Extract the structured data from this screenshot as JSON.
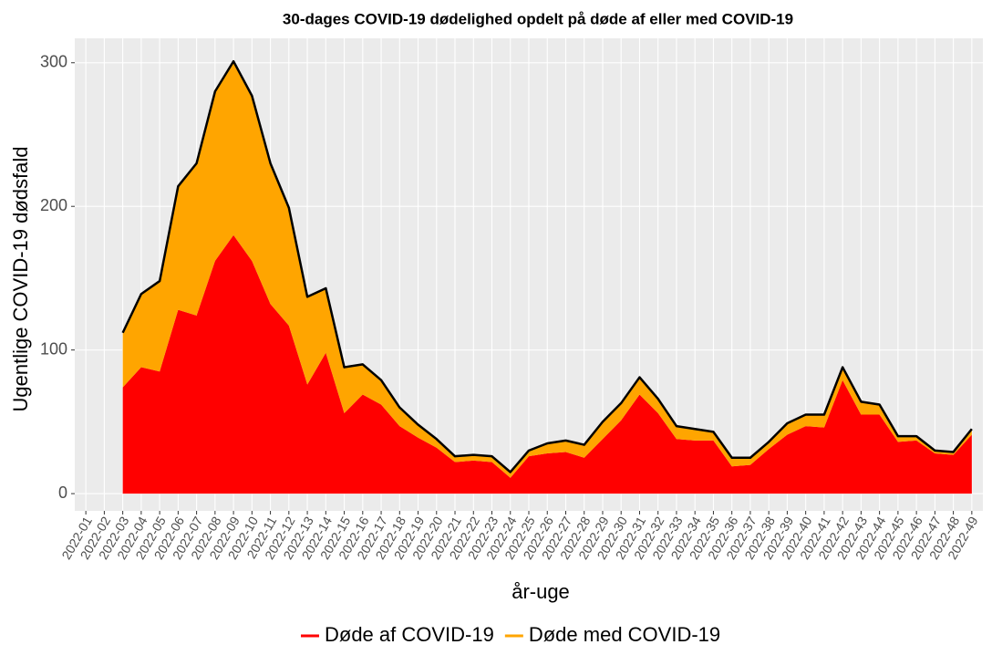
{
  "chart_data": {
    "type": "stacked-area",
    "title": "30-dages COVID-19 dødelighed opdelt på døde af eller med COVID-19",
    "x_label": "år-uge",
    "y_label": "Ugentlige COVID-19 dødsfald",
    "categories": [
      "2022-01",
      "2022-02",
      "2022-03",
      "2022-04",
      "2022-05",
      "2022-06",
      "2022-07",
      "2022-08",
      "2022-09",
      "2022-10",
      "2022-11",
      "2022-12",
      "2022-13",
      "2022-14",
      "2022-15",
      "2022-16",
      "2022-17",
      "2022-18",
      "2022-19",
      "2022-20",
      "2022-21",
      "2022-22",
      "2022-23",
      "2022-24",
      "2022-25",
      "2022-26",
      "2022-27",
      "2022-28",
      "2022-29",
      "2022-30",
      "2022-31",
      "2022-32",
      "2022-33",
      "2022-34",
      "2022-35",
      "2022-36",
      "2022-37",
      "2022-38",
      "2022-39",
      "2022-40",
      "2022-41",
      "2022-42",
      "2022-43",
      "2022-44",
      "2022-45",
      "2022-46",
      "2022-47",
      "2022-48",
      "2022-49"
    ],
    "series": [
      {
        "name": "Døde af COVID-19",
        "color": "#ff0000",
        "values": [
          null,
          null,
          74,
          88,
          85,
          128,
          124,
          162,
          180,
          162,
          132,
          117,
          76,
          98,
          56,
          69,
          62,
          47,
          39,
          32,
          22,
          23,
          22,
          11,
          26,
          28,
          29,
          25,
          38,
          51,
          69,
          56,
          38,
          37,
          37,
          19,
          20,
          31,
          41,
          47,
          46,
          79,
          55,
          55,
          36,
          37,
          28,
          27,
          41
        ]
      },
      {
        "name": "Døde med COVID-19",
        "color": "#ffa500",
        "values": [
          null,
          null,
          38,
          51,
          63,
          86,
          106,
          118,
          121,
          115,
          98,
          82,
          61,
          45,
          32,
          21,
          17,
          13,
          9,
          6,
          4,
          4,
          4,
          4,
          4,
          7,
          8,
          9,
          12,
          12,
          12,
          10,
          9,
          8,
          6,
          6,
          5,
          5,
          8,
          8,
          9,
          9,
          9,
          7,
          4,
          3,
          2,
          2,
          4
        ]
      }
    ],
    "outline_color": "#000000",
    "ylim": [
      -12,
      317
    ],
    "yticks": [
      0,
      100,
      200,
      300
    ],
    "grid": true,
    "legend": "bottom"
  }
}
